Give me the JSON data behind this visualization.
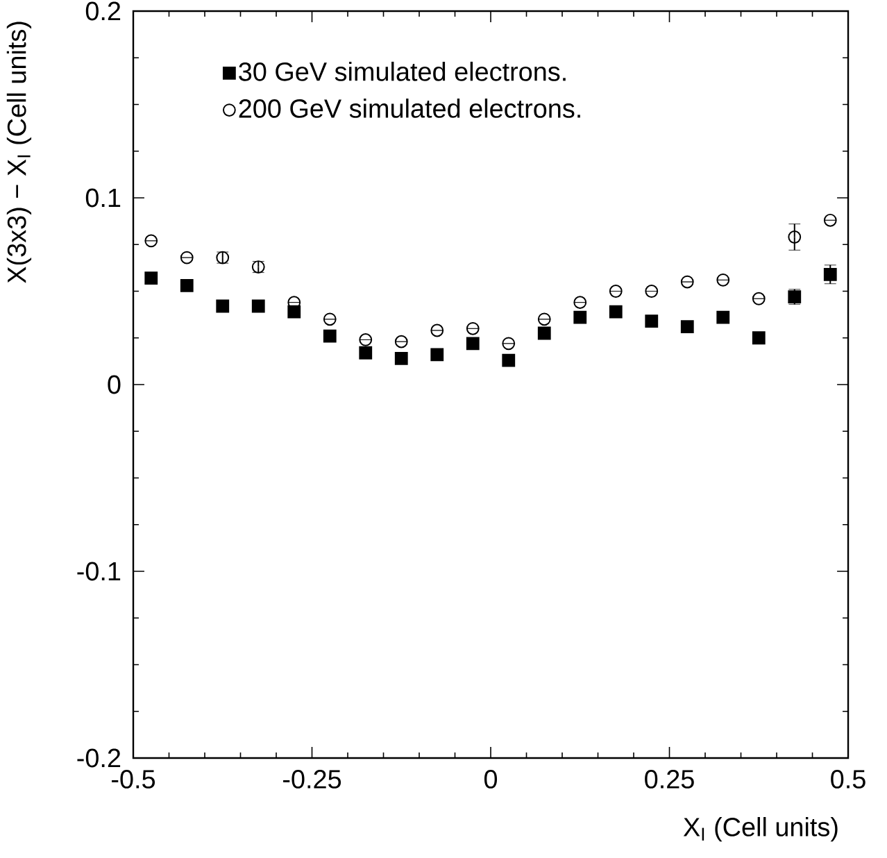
{
  "chart_data": {
    "type": "scatter",
    "xlabel": "X$_{I}$ (Cell units)",
    "ylabel": "X(3x3) − X$_{I}$ (Cell units)",
    "x": [
      -0.475,
      -0.425,
      -0.375,
      -0.325,
      -0.275,
      -0.225,
      -0.175,
      -0.125,
      -0.075,
      -0.025,
      0.025,
      0.075,
      0.125,
      0.175,
      0.225,
      0.275,
      0.325,
      0.375,
      0.425,
      0.475
    ],
    "series": [
      {
        "name": "30 GeV simulated electrons.",
        "color": "#000000",
        "marker": "square",
        "values": [
          0.057,
          0.053,
          0.042,
          0.042,
          0.039,
          0.026,
          0.017,
          0.014,
          0.016,
          0.022,
          0.013,
          0.0275,
          0.036,
          0.039,
          0.034,
          0.031,
          0.036,
          0.025,
          0.047,
          0.059
        ],
        "errors": [
          null,
          0.003,
          null,
          null,
          0.003,
          null,
          null,
          null,
          null,
          null,
          null,
          null,
          null,
          null,
          null,
          null,
          null,
          null,
          0.004,
          0.005
        ]
      },
      {
        "name": "200 GeV simulated electrons.",
        "color": "#000000",
        "marker": "circle",
        "values": [
          0.077,
          0.068,
          0.068,
          0.063,
          0.044,
          0.035,
          0.024,
          0.023,
          0.029,
          0.03,
          0.022,
          0.035,
          0.044,
          0.05,
          0.05,
          0.055,
          0.056,
          0.046,
          0.079,
          0.088
        ],
        "errors": [
          null,
          null,
          0.003,
          0.003,
          null,
          null,
          null,
          null,
          null,
          null,
          null,
          null,
          null,
          null,
          null,
          null,
          null,
          null,
          0.007,
          null
        ]
      }
    ],
    "xlim": [
      -0.5,
      0.5
    ],
    "ylim": [
      -0.2,
      0.2
    ],
    "xticks": [
      -0.5,
      -0.25,
      0,
      0.25,
      0.5
    ],
    "yticks": [
      -0.2,
      -0.1,
      0,
      0.1,
      0.2
    ],
    "legend": "top left"
  }
}
